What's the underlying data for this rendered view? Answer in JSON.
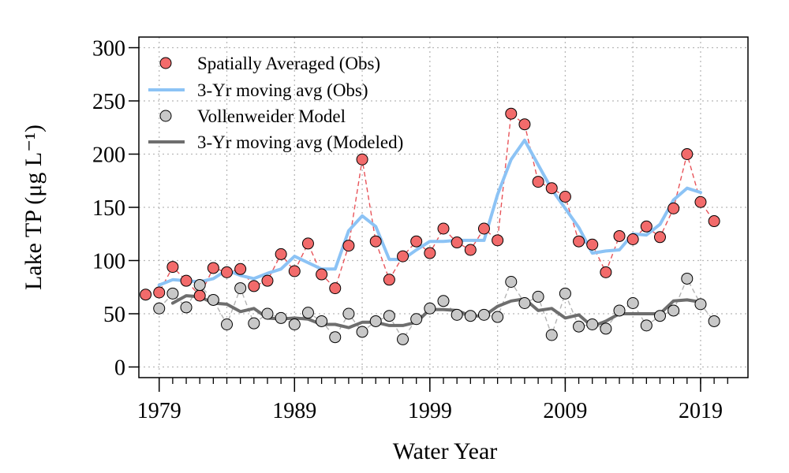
{
  "chart_data": {
    "type": "line",
    "xlabel": "Water Year",
    "ylabel": "Lake TP (μg L⁻¹)",
    "xlim": [
      1977.5,
      2022.5
    ],
    "ylim": [
      -10,
      310
    ],
    "x_ticks": [
      1979,
      1989,
      1999,
      2009,
      2019
    ],
    "x_minor_ticks": [
      1979,
      1980,
      1981,
      1982,
      1983,
      1984,
      1985,
      1986,
      1987,
      1988,
      1989,
      1990,
      1991,
      1992,
      1993,
      1994,
      1995,
      1996,
      1997,
      1998,
      1999,
      2000,
      2001,
      2002,
      2003,
      2004,
      2005,
      2006,
      2007,
      2008,
      2009,
      2010,
      2011,
      2012,
      2013,
      2014,
      2015,
      2016,
      2017,
      2018,
      2019,
      2020,
      2021
    ],
    "x_grid": [
      1979,
      1984,
      1989,
      1994,
      1999,
      2004,
      2009,
      2014,
      2019
    ],
    "y_ticks": [
      0,
      50,
      100,
      150,
      200,
      250,
      300
    ],
    "y_tick_labels": [
      "0",
      "50",
      "100",
      "150",
      "200",
      "250",
      "300"
    ],
    "grid": true,
    "legend_position": "top-left",
    "x": [
      1978,
      1979,
      1980,
      1981,
      1982,
      1983,
      1984,
      1985,
      1986,
      1987,
      1988,
      1989,
      1990,
      1991,
      1992,
      1993,
      1994,
      1995,
      1996,
      1997,
      1998,
      1999,
      2000,
      2001,
      2002,
      2003,
      2004,
      2005,
      2006,
      2007,
      2008,
      2009,
      2010,
      2011,
      2012,
      2013,
      2014,
      2015,
      2016,
      2017,
      2018,
      2019,
      2020
    ],
    "series": [
      {
        "name": "Spatially Averaged (Obs)",
        "kind": "points-dashed",
        "color": "#f26b6b",
        "line_color": "#e8545a",
        "values": [
          68,
          70,
          94,
          81,
          67,
          93,
          89,
          92,
          76,
          81,
          106,
          90,
          116,
          87,
          74,
          114,
          195,
          118,
          82,
          104,
          118,
          107,
          130,
          117,
          110,
          130,
          119,
          238,
          228,
          174,
          168,
          160,
          118,
          115,
          89,
          123,
          120,
          132,
          122,
          149,
          200,
          155,
          137
        ]
      },
      {
        "name": "3-Yr moving avg (Obs)",
        "kind": "line",
        "color": "#8cc3f5",
        "values": [
          null,
          77,
          82,
          81,
          80,
          83,
          91,
          86,
          83,
          88,
          92,
          104,
          98,
          92,
          92,
          128,
          142,
          132,
          101,
          101,
          110,
          118,
          118,
          119,
          119,
          119,
          162,
          195,
          213,
          190,
          167,
          149,
          131,
          107,
          109,
          110,
          125,
          124,
          134,
          157,
          168,
          164,
          null
        ]
      },
      {
        "name": "Vollenweider Model",
        "kind": "points-dashed",
        "color": "#c8c8c8",
        "line_color": "#b4b4b4",
        "values": [
          null,
          55,
          69,
          56,
          77,
          63,
          40,
          74,
          41,
          50,
          46,
          40,
          51,
          43,
          28,
          50,
          33,
          43,
          48,
          26,
          45,
          55,
          62,
          49,
          48,
          49,
          47,
          80,
          60,
          66,
          30,
          69,
          38,
          40,
          36,
          53,
          60,
          39,
          48,
          53,
          83,
          59,
          43
        ]
      },
      {
        "name": "3-Yr moving avg (Modeled)",
        "kind": "line",
        "color": "#6e6e6e",
        "values": [
          null,
          null,
          60,
          67,
          66,
          60,
          59,
          52,
          55,
          46,
          45,
          46,
          45,
          40,
          40,
          37,
          42,
          42,
          39,
          39,
          42,
          54,
          54,
          53,
          48,
          48,
          57,
          62,
          64,
          53,
          55,
          46,
          49,
          38,
          43,
          50,
          50,
          50,
          50,
          62,
          63,
          61,
          null
        ]
      }
    ]
  }
}
